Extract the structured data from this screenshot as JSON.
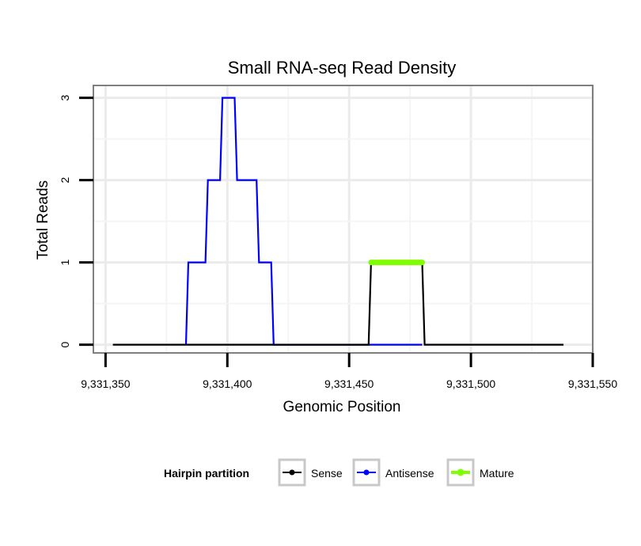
{
  "chart_data": {
    "type": "line",
    "title": "Small RNA-seq Read Density",
    "xlabel": "Genomic Position",
    "ylabel": "Total Reads",
    "xlim": [
      9331345,
      9331550
    ],
    "ylim": [
      -0.1,
      3.15
    ],
    "x_ticks": [
      9331350,
      9331400,
      9331450,
      9331500,
      9331550
    ],
    "x_tick_labels": [
      "9,331,350",
      "9,331,400",
      "9,331,450",
      "9,331,500",
      "9,331,550"
    ],
    "y_ticks": [
      0,
      1,
      2,
      3
    ],
    "y_tick_labels": [
      "0",
      "1",
      "2",
      "3"
    ],
    "grid": true,
    "legend_position": "bottom",
    "legend_title": "Hairpin partition",
    "series": [
      {
        "name": "Sense",
        "color": "#000000",
        "points": [
          [
            9331353,
            0
          ],
          [
            9331458,
            0
          ],
          [
            9331459,
            1
          ],
          [
            9331480,
            1
          ],
          [
            9331481,
            0
          ],
          [
            9331538,
            0
          ]
        ]
      },
      {
        "name": "Antisense",
        "color": "#0000ff",
        "points": [
          [
            9331383,
            0
          ],
          [
            9331384,
            1
          ],
          [
            9331391,
            1
          ],
          [
            9331392,
            2
          ],
          [
            9331397,
            2
          ],
          [
            9331398,
            3
          ],
          [
            9331403,
            3
          ],
          [
            9331404,
            2
          ],
          [
            9331412,
            2
          ],
          [
            9331413,
            1
          ],
          [
            9331418,
            1
          ],
          [
            9331419,
            0
          ],
          [
            9331458,
            0
          ],
          [
            9331480,
            0
          ]
        ]
      },
      {
        "name": "Mature",
        "color": "#7fff00",
        "points": [
          [
            9331459,
            1
          ],
          [
            9331480,
            1
          ]
        ]
      }
    ]
  }
}
